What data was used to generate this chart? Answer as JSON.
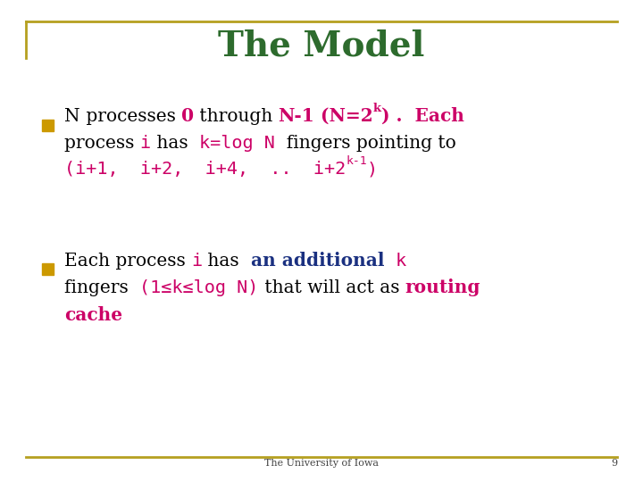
{
  "title": "The Model",
  "title_color": "#2d6b2d",
  "title_fontsize": 28,
  "bg_color": "#ffffff",
  "border_color": "#b5a020",
  "bullet_color": "#cc9900",
  "footer_text": "The University of Iowa",
  "footer_number": "9",
  "black": "#000000",
  "crimson": "#cc0066",
  "navy": "#1a3080",
  "hotpink": "#cc0066"
}
